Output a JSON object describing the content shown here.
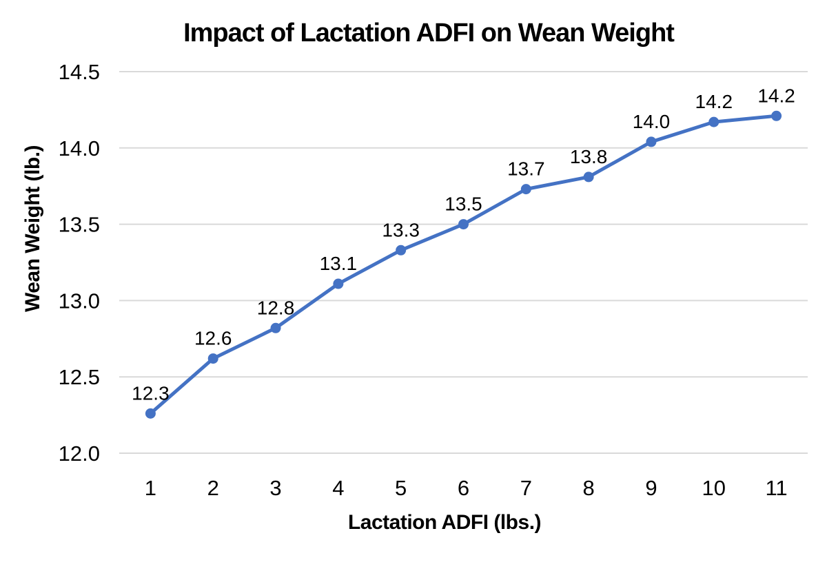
{
  "chart_data": {
    "type": "line",
    "title": "Impact of Lactation ADFI on Wean Weight",
    "xlabel": "Lactation ADFI (lbs.)",
    "ylabel": "Wean Weight (lb.)",
    "categories": [
      "1",
      "2",
      "3",
      "4",
      "5",
      "6",
      "7",
      "8",
      "9",
      "10",
      "11"
    ],
    "values": [
      12.26,
      12.62,
      12.82,
      13.11,
      13.33,
      13.5,
      13.73,
      13.81,
      14.04,
      14.17,
      14.21
    ],
    "point_labels": [
      "12.3",
      "12.6",
      "12.8",
      "13.1",
      "13.3",
      "13.5",
      "13.7",
      "13.8",
      "14.0",
      "14.2",
      "14.2"
    ],
    "yticks": [
      "12.0",
      "12.5",
      "13.0",
      "13.5",
      "14.0",
      "14.5"
    ],
    "ylim": [
      12.0,
      14.5
    ],
    "grid": "horizontal",
    "legend": "none",
    "colors": {
      "line": "#4472C4",
      "marker": "#4472C4",
      "gridline": "#D9D9D9",
      "text": "#000000",
      "background": "#FFFFFF"
    }
  }
}
